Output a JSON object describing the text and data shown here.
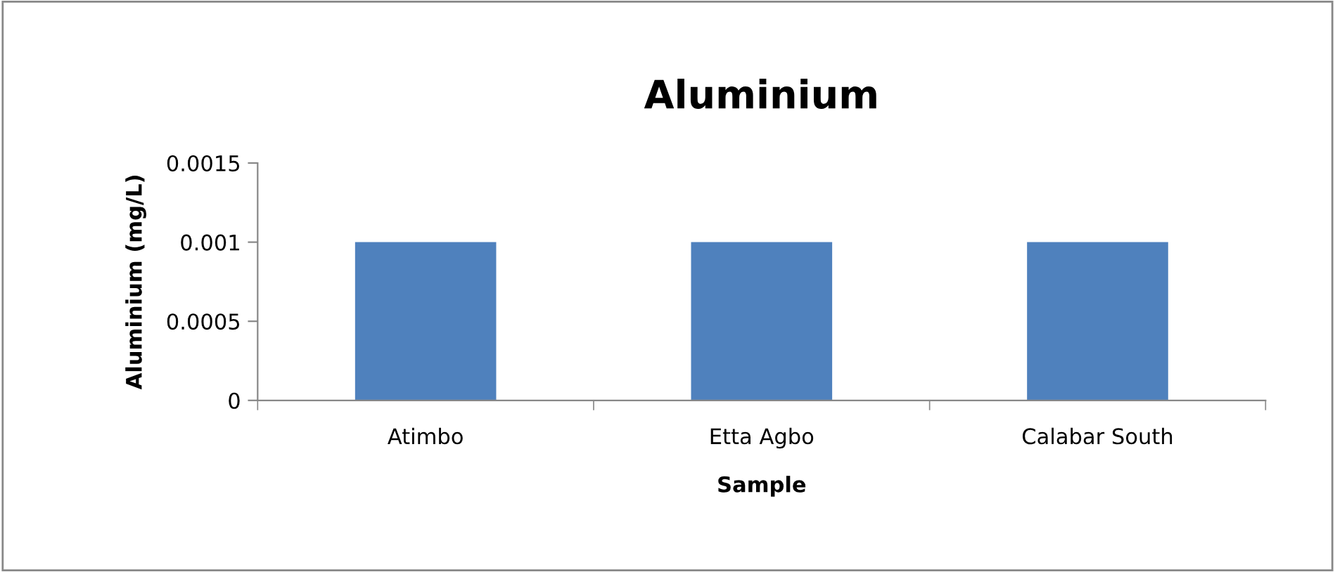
{
  "chart_data": {
    "type": "bar",
    "title": "Aluminium",
    "xlabel": "Sample",
    "ylabel": "Aluminium (mg/L)",
    "categories": [
      "Atimbo",
      "Etta Agbo",
      "Calabar South"
    ],
    "values": [
      0.001,
      0.001,
      0.001
    ],
    "color": "#4f81bd",
    "ylim": [
      0,
      0.0015
    ],
    "yticks": [
      0,
      0.0005,
      0.001,
      0.0015
    ],
    "grid": false,
    "legend": false
  }
}
